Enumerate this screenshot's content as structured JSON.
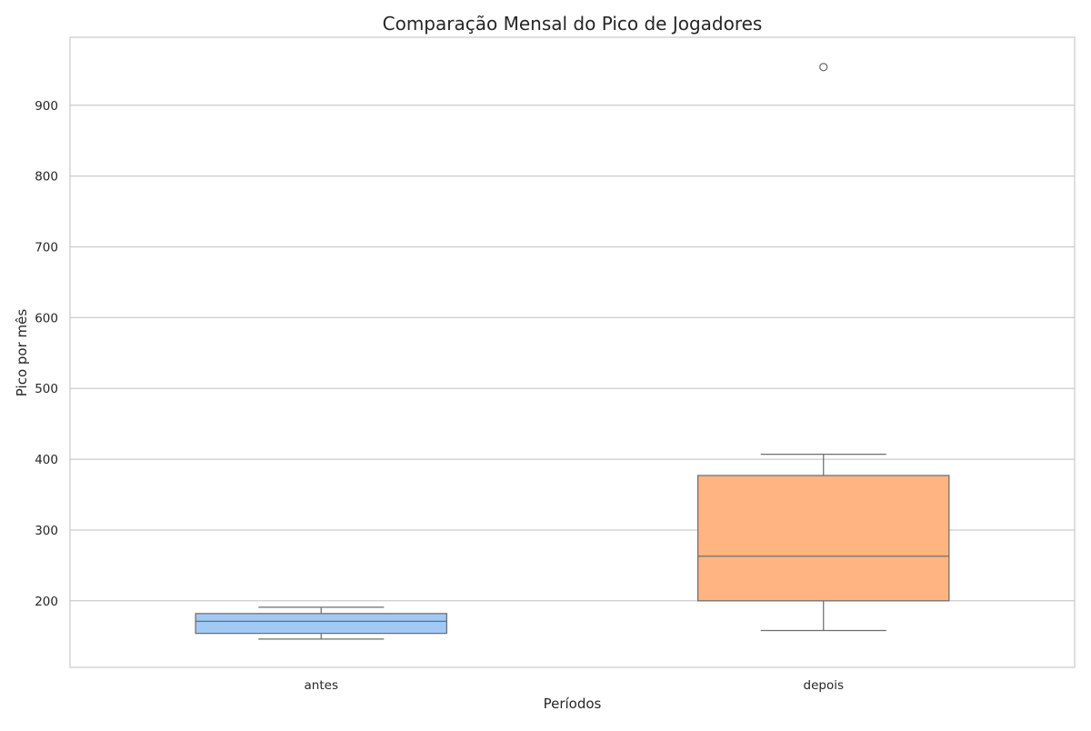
{
  "chart_data": {
    "type": "box",
    "title": "Comparação Mensal do Pico de Jogadores",
    "xlabel": "Períodos",
    "ylabel": "Pico por mês",
    "categories": [
      "antes",
      "depois"
    ],
    "y_ticks": [
      200,
      300,
      400,
      500,
      600,
      700,
      800,
      900
    ],
    "ylim": [
      106,
      996
    ],
    "grid": true,
    "boxes": [
      {
        "category": "antes",
        "whisker_low": 146,
        "q1": 154,
        "median": 171,
        "q3": 182,
        "whisker_high": 191,
        "outliers": [],
        "color": "#a1c9f4"
      },
      {
        "category": "depois",
        "whisker_low": 158,
        "q1": 200,
        "median": 263,
        "q3": 377,
        "whisker_high": 407,
        "outliers": [
          954
        ],
        "color": "#ffb482"
      }
    ]
  }
}
